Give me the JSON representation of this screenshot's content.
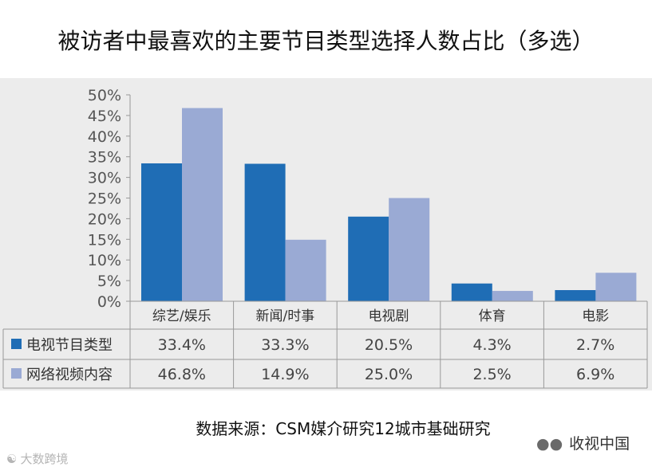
{
  "chart_data": {
    "type": "bar",
    "title": "被访者中最喜欢的主要节目类型选择人数占比（多选）",
    "categories": [
      "综艺/娱乐",
      "新闻/时事",
      "电视剧",
      "体育",
      "电影"
    ],
    "series": [
      {
        "name": "电视节目类型",
        "color": "#1f6db5",
        "values": [
          33.4,
          33.3,
          20.5,
          4.3,
          2.7
        ],
        "labels": [
          "33.4%",
          "33.3%",
          "20.5%",
          "4.3%",
          "2.7%"
        ]
      },
      {
        "name": "网络视频内容",
        "color": "#9aaad4",
        "values": [
          46.8,
          14.9,
          25.0,
          2.5,
          6.9
        ],
        "labels": [
          "46.8%",
          "14.9%",
          "25.0%",
          "2.5%",
          "6.9%"
        ]
      }
    ],
    "ylim": [
      0,
      50
    ],
    "yticks": [
      "0%",
      "5%",
      "10%",
      "15%",
      "20%",
      "25%",
      "30%",
      "35%",
      "40%",
      "45%",
      "50%"
    ],
    "data_table": true,
    "legend_position": "table-left"
  },
  "source": "数据来源：CSM媒介研究12城市基础研究",
  "watermark_right": {
    "icon": "wechat-icon",
    "text": "收视中国"
  },
  "watermark_left": {
    "icon": "sina-weibo-logo",
    "text": "大数跨境"
  }
}
